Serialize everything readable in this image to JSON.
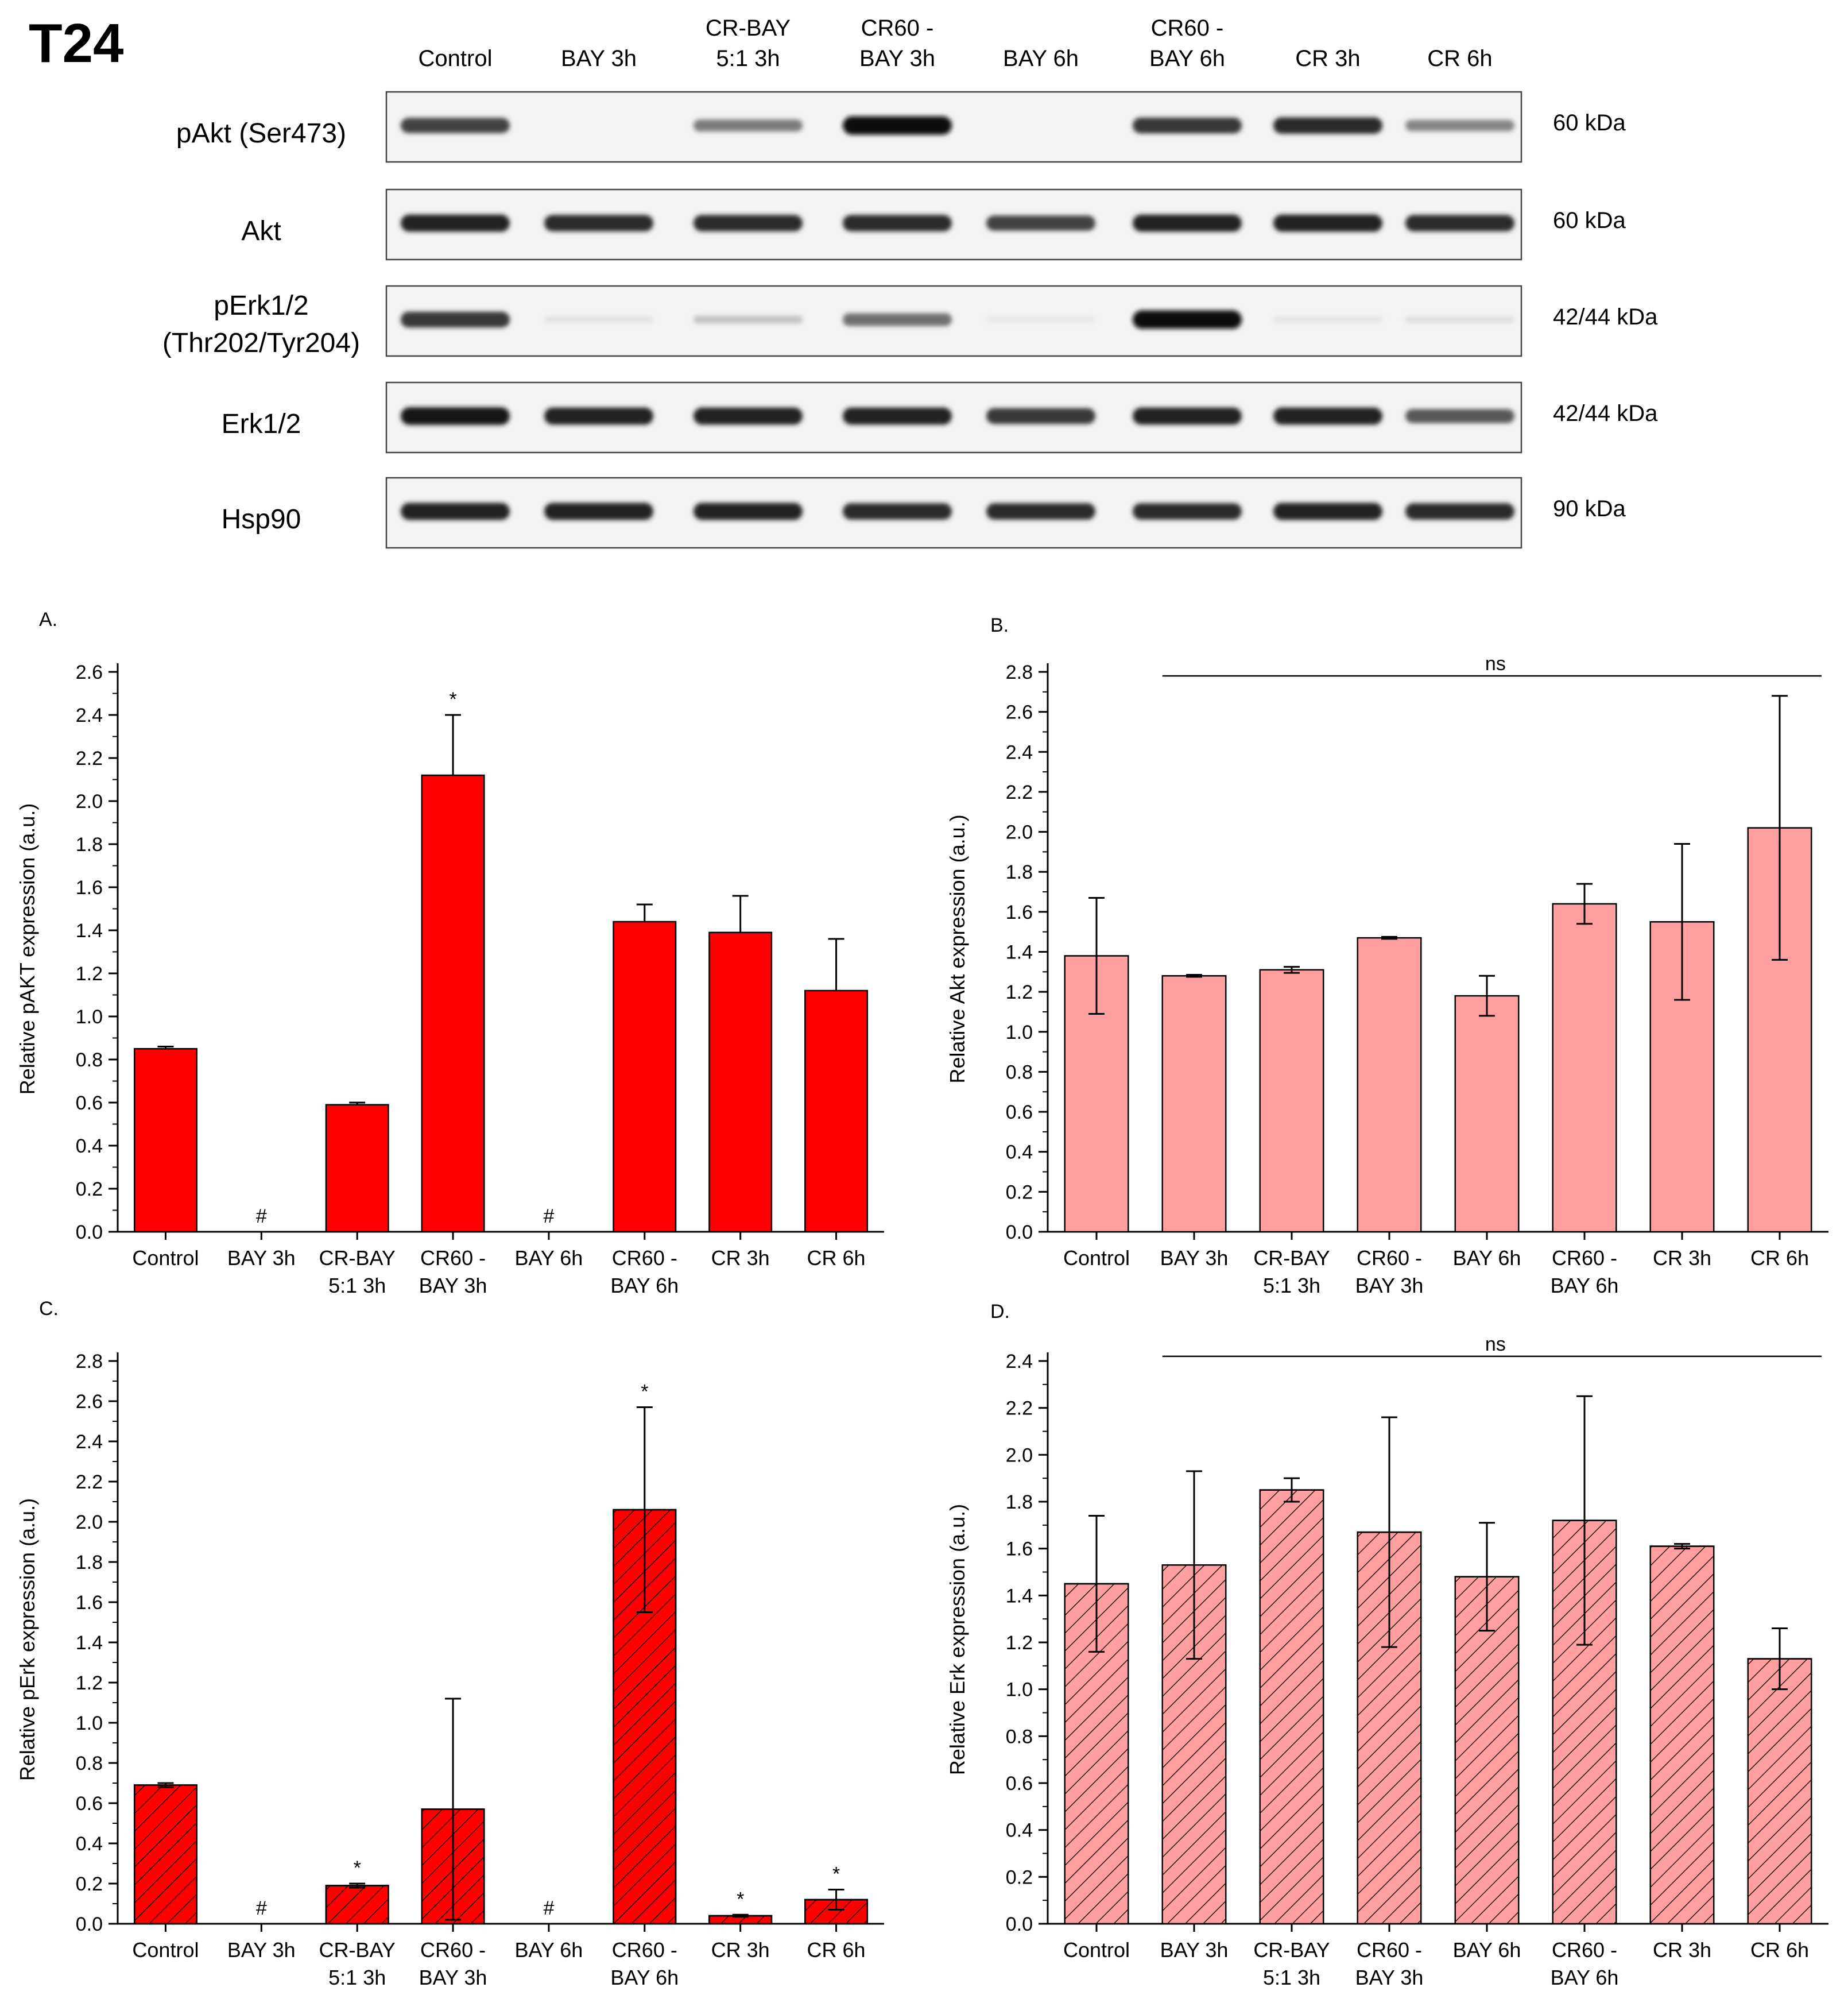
{
  "figure_title": "T24",
  "blot": {
    "lanes": [
      {
        "line1": "",
        "line2": "Control"
      },
      {
        "line1": "",
        "line2": "BAY 3h"
      },
      {
        "line1": "CR-BAY",
        "line2": "5:1 3h"
      },
      {
        "line1": "CR60 -",
        "line2": "BAY 3h"
      },
      {
        "line1": "",
        "line2": "BAY 6h"
      },
      {
        "line1": "CR60 -",
        "line2": "BAY 6h"
      },
      {
        "line1": "",
        "line2": "CR 3h"
      },
      {
        "line1": "",
        "line2": "CR 6h"
      }
    ],
    "rows": [
      {
        "label1": "pAkt (Ser473)",
        "label2": "",
        "kda": "60 kDa",
        "intensity": [
          0.75,
          0.0,
          0.5,
          1.0,
          0.0,
          0.8,
          0.85,
          0.45
        ]
      },
      {
        "label1": "Akt",
        "label2": "",
        "kda": "60 kDa",
        "intensity": [
          0.9,
          0.85,
          0.85,
          0.85,
          0.75,
          0.9,
          0.9,
          0.85
        ]
      },
      {
        "label1": "pErk1/2",
        "label2": "(Thr202/Tyr204)",
        "kda": "42/44 kDa",
        "intensity": [
          0.8,
          0.04,
          0.18,
          0.55,
          0.02,
          1.0,
          0.03,
          0.06
        ]
      },
      {
        "label1": "Erk1/2",
        "label2": "",
        "kda": "42/44 kDa",
        "intensity": [
          0.95,
          0.9,
          0.9,
          0.9,
          0.8,
          0.9,
          0.9,
          0.65
        ]
      },
      {
        "label1": "Hsp90",
        "label2": "",
        "kda": "90 kDa",
        "intensity": [
          0.9,
          0.9,
          0.9,
          0.85,
          0.85,
          0.85,
          0.9,
          0.85
        ]
      }
    ]
  },
  "chart_data": [
    {
      "panel": "A.",
      "type": "bar",
      "categories": [
        [
          "Control"
        ],
        [
          "BAY 3h"
        ],
        [
          "CR-BAY",
          "5:1 3h"
        ],
        [
          "CR60 -",
          "BAY 3h"
        ],
        [
          "BAY 6h"
        ],
        [
          "CR60 -",
          "BAY 6h"
        ],
        [
          "CR 3h"
        ],
        [
          "CR 6h"
        ]
      ],
      "values": [
        0.85,
        0,
        0.59,
        2.12,
        0,
        1.44,
        1.39,
        1.12
      ],
      "errors": [
        0.01,
        null,
        0.01,
        0.28,
        null,
        0.08,
        0.17,
        0.24
      ],
      "error_mode": "upper",
      "marks": [
        "",
        "#",
        "",
        "*",
        "#",
        "",
        "",
        ""
      ],
      "ylabel": "Relative pAKT expression (a.u.)",
      "ylim": [
        0,
        2.6
      ],
      "yticks": [
        "0.0",
        "0.2",
        "0.4",
        "0.6",
        "0.8",
        "1.0",
        "1.2",
        "1.4",
        "1.6",
        "1.8",
        "2.0",
        "2.2",
        "2.4",
        "2.6"
      ],
      "color": "#ff0000",
      "hatch": false,
      "ns_label": ""
    },
    {
      "panel": "B.",
      "type": "bar",
      "categories": [
        [
          "Control"
        ],
        [
          "BAY 3h"
        ],
        [
          "CR-BAY",
          "5:1 3h"
        ],
        [
          "CR60 -",
          "BAY 3h"
        ],
        [
          "BAY 6h"
        ],
        [
          "CR60 -",
          "BAY 6h"
        ],
        [
          "CR 3h"
        ],
        [
          "CR 6h"
        ]
      ],
      "values": [
        1.38,
        1.28,
        1.31,
        1.47,
        1.18,
        1.64,
        1.55,
        2.02
      ],
      "errors": [
        0.29,
        0.005,
        0.015,
        0.005,
        0.1,
        0.1,
        0.39,
        0.66
      ],
      "error_mode": "both",
      "marks": [
        "",
        "",
        "",
        "",
        "",
        "",
        "",
        ""
      ],
      "ylabel": "Relative Akt expression (a.u.)",
      "ylim": [
        0,
        2.8
      ],
      "yticks": [
        "0.0",
        "0.2",
        "0.4",
        "0.6",
        "0.8",
        "1.0",
        "1.2",
        "1.4",
        "1.6",
        "1.8",
        "2.0",
        "2.2",
        "2.4",
        "2.6",
        "2.8"
      ],
      "color": "#ff9f9f",
      "hatch": false,
      "ns_label": "ns",
      "ns_value": 2.78
    },
    {
      "panel": "C.",
      "type": "bar",
      "categories": [
        [
          "Control"
        ],
        [
          "BAY 3h"
        ],
        [
          "CR-BAY",
          "5:1 3h"
        ],
        [
          "CR60 -",
          "BAY 3h"
        ],
        [
          "BAY 6h"
        ],
        [
          "CR60 -",
          "BAY 6h"
        ],
        [
          "CR 3h"
        ],
        [
          "CR 6h"
        ]
      ],
      "values": [
        0.69,
        0,
        0.19,
        0.57,
        0,
        2.06,
        0.04,
        0.12
      ],
      "errors": [
        0.01,
        null,
        0.01,
        0.55,
        null,
        0.51,
        0.005,
        0.05
      ],
      "error_mode": "both",
      "marks": [
        "",
        "#",
        "*",
        "",
        "#",
        "*",
        "*",
        "*"
      ],
      "ylabel": "Relative pErk expression (a.u.)",
      "ylim": [
        0,
        2.8
      ],
      "yticks": [
        "0.0",
        "0.2",
        "0.4",
        "0.6",
        "0.8",
        "1.0",
        "1.2",
        "1.4",
        "1.6",
        "1.8",
        "2.0",
        "2.2",
        "2.4",
        "2.6",
        "2.8"
      ],
      "color": "#ff0000",
      "hatch": true,
      "ns_label": ""
    },
    {
      "panel": "D.",
      "type": "bar",
      "categories": [
        [
          "Control"
        ],
        [
          "BAY 3h"
        ],
        [
          "CR-BAY",
          "5:1 3h"
        ],
        [
          "CR60 -",
          "BAY 3h"
        ],
        [
          "BAY 6h"
        ],
        [
          "CR60 -",
          "BAY 6h"
        ],
        [
          "CR 3h"
        ],
        [
          "CR 6h"
        ]
      ],
      "values": [
        1.45,
        1.53,
        1.85,
        1.67,
        1.48,
        1.72,
        1.61,
        1.13
      ],
      "errors": [
        0.29,
        0.4,
        0.05,
        0.49,
        0.23,
        0.53,
        0.01,
        0.13
      ],
      "error_mode": "both",
      "marks": [
        "",
        "",
        "",
        "",
        "",
        "",
        "",
        ""
      ],
      "ylabel": "Relative Erk expression (a.u.)",
      "ylim": [
        0,
        2.4
      ],
      "yticks": [
        "0.0",
        "0.2",
        "0.4",
        "0.6",
        "0.8",
        "1.0",
        "1.2",
        "1.4",
        "1.6",
        "1.8",
        "2.0",
        "2.2",
        "2.4"
      ],
      "color": "#ff9f9f",
      "hatch": true,
      "ns_label": "ns",
      "ns_value": 2.42
    }
  ]
}
